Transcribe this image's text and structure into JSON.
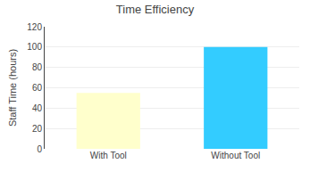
{
  "chart_data": {
    "type": "bar",
    "title": "Time Efficiency",
    "categories": [
      "With Tool",
      "Without Tool"
    ],
    "values": [
      55,
      100
    ],
    "colors": [
      "#FFFFCC",
      "#33CCFF"
    ],
    "ylabel": "Staff Time (hours)",
    "ylim": [
      0,
      120
    ],
    "yticks": [
      0,
      20,
      40,
      60,
      80,
      100,
      120
    ],
    "grid": true
  }
}
